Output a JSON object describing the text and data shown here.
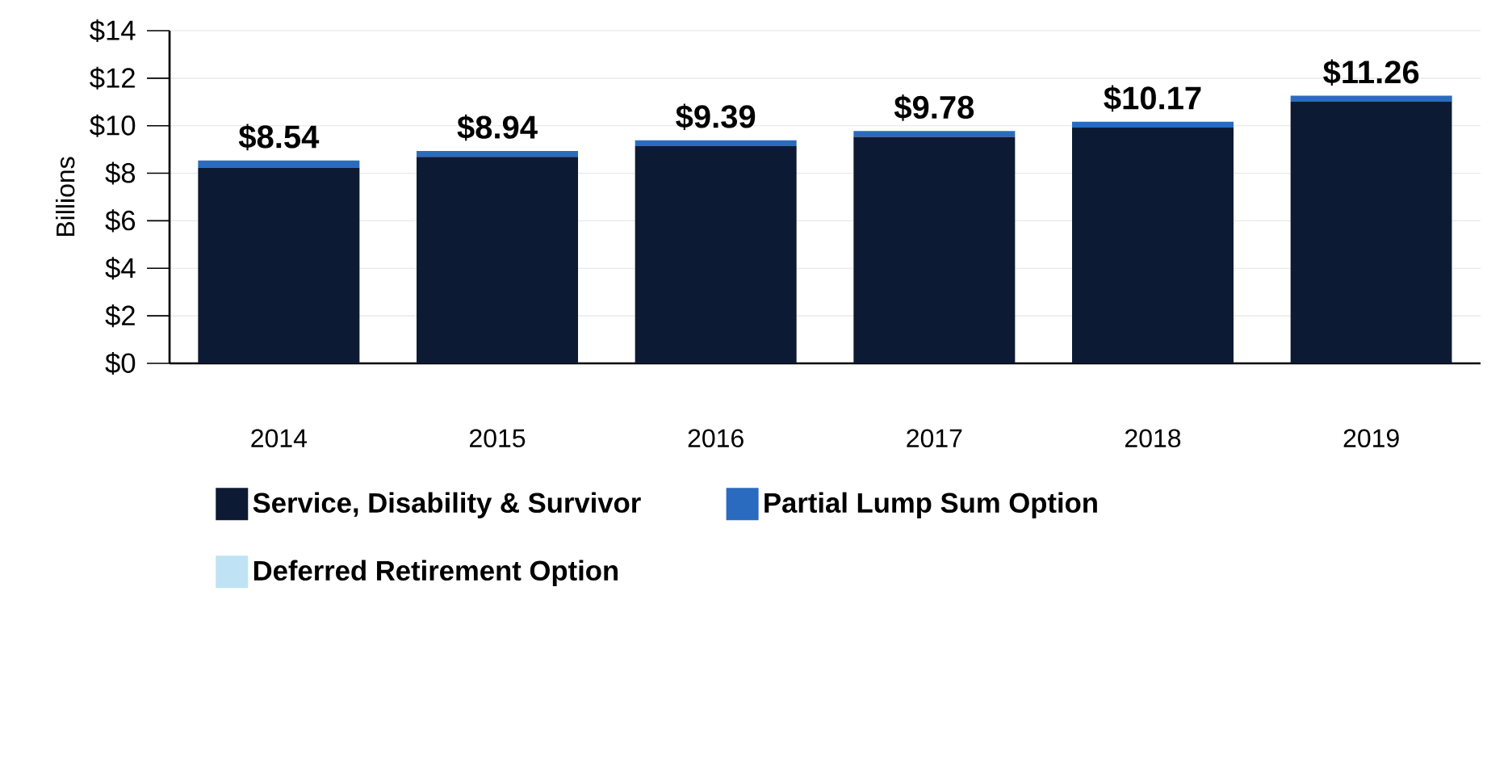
{
  "chart_data": {
    "type": "bar",
    "stacked": true,
    "ylabel": "Billions",
    "categories": [
      "2014",
      "2015",
      "2016",
      "2017",
      "2018",
      "2019"
    ],
    "series": [
      {
        "name": "Service, Disability & Survivor",
        "color": "#0d1a33",
        "values": [
          8.24,
          8.69,
          9.14,
          9.53,
          9.92,
          11.01
        ]
      },
      {
        "name": "Partial Lump Sum Option",
        "color": "#2a6bbf",
        "values": [
          0.3,
          0.25,
          0.25,
          0.25,
          0.25,
          0.25
        ]
      },
      {
        "name": "Deferred Retirement Option",
        "color": "#bfe3f5",
        "values": [
          null,
          null,
          null,
          null,
          null,
          null
        ]
      }
    ],
    "totals": [
      "$8.54",
      "$8.94",
      "$9.39",
      "$9.78",
      "$10.17",
      "$11.26"
    ],
    "ylim": [
      0,
      14
    ],
    "yticks": [
      {
        "value": 0,
        "label": "$0"
      },
      {
        "value": 2,
        "label": "$2"
      },
      {
        "value": 4,
        "label": "$4"
      },
      {
        "value": 6,
        "label": "$6"
      },
      {
        "value": 8,
        "label": "$8"
      },
      {
        "value": 10,
        "label": "$10"
      },
      {
        "value": 12,
        "label": "$12"
      },
      {
        "value": 14,
        "label": "$14"
      }
    ],
    "grid": "y",
    "legend": "bottom"
  }
}
